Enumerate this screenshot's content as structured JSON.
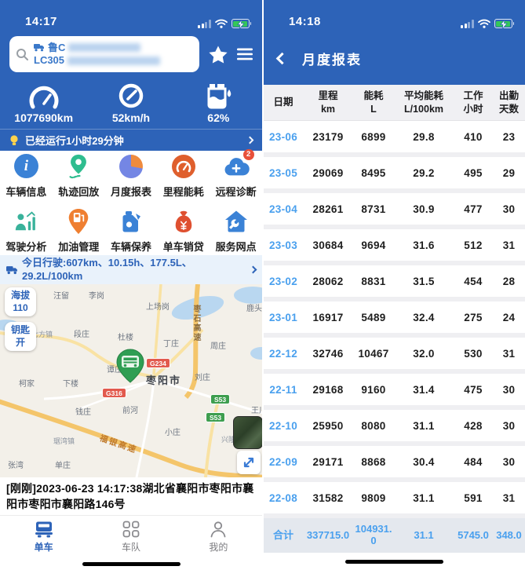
{
  "colors": {
    "accent_blue": "#2d63b8",
    "link_blue": "#4aa0ee",
    "badge_red": "#e8503a",
    "battery_green": "#35c759",
    "marker_green": "#2f9e53"
  },
  "left_panel": {
    "status_bar": {
      "time": "14:17"
    },
    "search": {
      "plate_prefix": "鲁C",
      "plate_code": "LC305"
    },
    "stats": [
      {
        "icon": "odometer-icon",
        "value": "1077690km"
      },
      {
        "icon": "speedometer-icon",
        "value": "52km/h"
      },
      {
        "icon": "fuel-level-icon",
        "value": "62%"
      }
    ],
    "notice": {
      "text": "已经运行1小时29分钟"
    },
    "menu": [
      {
        "label": "车辆信息",
        "icon": "vehicle-info-icon"
      },
      {
        "label": "轨迹回放",
        "icon": "track-replay-icon"
      },
      {
        "label": "月度报表",
        "icon": "monthly-report-icon"
      },
      {
        "label": "里程能耗",
        "icon": "mileage-energy-icon"
      },
      {
        "label": "远程诊断",
        "icon": "remote-diagnosis-icon",
        "badge": "2"
      },
      {
        "label": "驾驶分析",
        "icon": "driving-analysis-icon"
      },
      {
        "label": "加油管理",
        "icon": "refuel-management-icon"
      },
      {
        "label": "车辆保养",
        "icon": "vehicle-maintenance-icon"
      },
      {
        "label": "单车销贷",
        "icon": "vehicle-loan-icon"
      },
      {
        "label": "服务网点",
        "icon": "service-network-icon"
      }
    ],
    "today_trip": "今日行驶:607km、10.15h、177.5L、29.2L/100km",
    "map": {
      "altitude_badge": {
        "line1": "海拔",
        "line2": "110"
      },
      "key_badge": {
        "line1": "钥匙",
        "line2": "开"
      },
      "city_label": "枣阳市",
      "place_labels": [
        "汪留",
        "李岗",
        "上场岗",
        "鹿头镇",
        "七方镇",
        "段庄",
        "杜楼",
        "丁庄",
        "周庄",
        "谭庄",
        "刘庄",
        "柯家",
        "下楼",
        "钱庄",
        "前河",
        "王川",
        "小庄",
        "琚湾镇",
        "张湾",
        "单庄",
        "兴隆"
      ],
      "highway_labels": [
        "枣石高速",
        "福银高速"
      ],
      "road_badges": [
        "G234",
        "G316",
        "S53",
        "S53"
      ]
    },
    "address": "[刚刚]2023-06-23 14:17:38湖北省襄阳市枣阳市襄阳市枣阳市襄阳路146号",
    "tab_bar": [
      {
        "label": "单车",
        "icon": "truck-icon",
        "active": true
      },
      {
        "label": "车队",
        "icon": "fleet-grid-icon",
        "active": false
      },
      {
        "label": "我的",
        "icon": "profile-icon",
        "active": false
      }
    ]
  },
  "right_panel": {
    "status_bar": {
      "time": "14:18"
    },
    "nav": {
      "title": "月度报表"
    },
    "table": {
      "headers": [
        {
          "line1": "日期",
          "line2": ""
        },
        {
          "line1": "里程",
          "line2": "km"
        },
        {
          "line1": "能耗",
          "line2": "L"
        },
        {
          "line1": "平均能耗",
          "line2": "L/100km"
        },
        {
          "line1": "工作",
          "line2": "小时"
        },
        {
          "line1": "出勤",
          "line2": "天数"
        }
      ],
      "rows": [
        [
          "23-06",
          "23179",
          "6899",
          "29.8",
          "410",
          "23"
        ],
        [
          "23-05",
          "29069",
          "8495",
          "29.2",
          "495",
          "29"
        ],
        [
          "23-04",
          "28261",
          "8731",
          "30.9",
          "477",
          "30"
        ],
        [
          "23-03",
          "30684",
          "9694",
          "31.6",
          "512",
          "31"
        ],
        [
          "23-02",
          "28062",
          "8831",
          "31.5",
          "454",
          "28"
        ],
        [
          "23-01",
          "16917",
          "5489",
          "32.4",
          "275",
          "24"
        ],
        [
          "22-12",
          "32746",
          "10467",
          "32.0",
          "530",
          "31"
        ],
        [
          "22-11",
          "29168",
          "9160",
          "31.4",
          "475",
          "30"
        ],
        [
          "22-10",
          "25950",
          "8080",
          "31.1",
          "428",
          "30"
        ],
        [
          "22-09",
          "29171",
          "8868",
          "30.4",
          "484",
          "30"
        ],
        [
          "22-08",
          "31582",
          "9809",
          "31.1",
          "591",
          "31"
        ]
      ],
      "total_row": [
        "合计",
        "337715.0",
        "104931.0",
        "31.1",
        "5745.0",
        "348.0"
      ]
    }
  }
}
